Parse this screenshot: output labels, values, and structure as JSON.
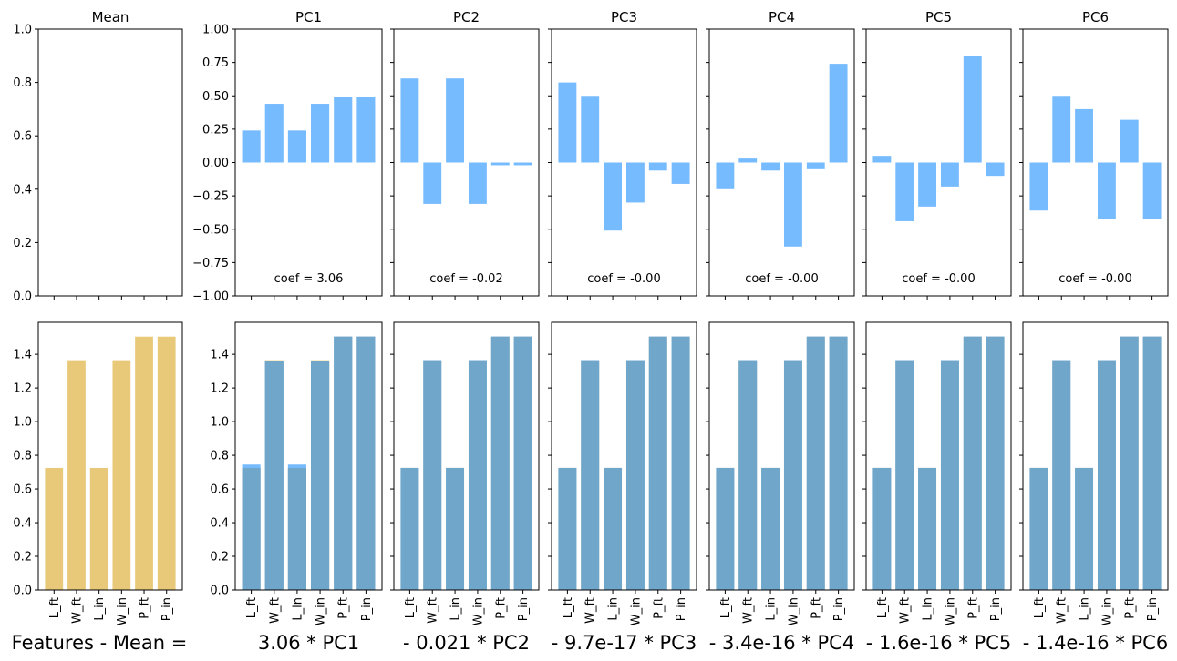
{
  "chart_data": {
    "type": "bar",
    "categories": [
      "L_ft",
      "W_ft",
      "L_in",
      "W_in",
      "P_ft",
      "P_in"
    ],
    "colors": {
      "mean": "#e8c97a",
      "component": "#77bbff",
      "reconstruction": "#77bbff",
      "overlap": "#6fa6ca"
    },
    "top_row": {
      "ylim_mean": [
        0,
        1
      ],
      "yticks_mean": [
        "0.0",
        "0.2",
        "0.4",
        "0.6",
        "0.8",
        "1.0"
      ],
      "ylim_pc": [
        -1,
        1
      ],
      "yticks_pc": [
        "−1.00",
        "−0.75",
        "−0.50",
        "−0.25",
        "0.00",
        "0.25",
        "0.50",
        "0.75",
        "1.00"
      ],
      "panels": [
        {
          "title": "Mean",
          "values": [],
          "annotation": ""
        },
        {
          "title": "PC1",
          "values": [
            0.24,
            0.44,
            0.24,
            0.44,
            0.49,
            0.49
          ],
          "annotation": "coef = 3.06"
        },
        {
          "title": "PC2",
          "values": [
            0.63,
            -0.31,
            0.63,
            -0.31,
            -0.02,
            -0.02
          ],
          "annotation": "coef = -0.02"
        },
        {
          "title": "PC3",
          "values": [
            0.6,
            0.5,
            -0.51,
            -0.3,
            -0.06,
            -0.16
          ],
          "annotation": "coef = -0.00"
        },
        {
          "title": "PC4",
          "values": [
            -0.2,
            0.03,
            -0.06,
            -0.63,
            -0.05,
            0.74
          ],
          "annotation": "coef = -0.00"
        },
        {
          "title": "PC5",
          "values": [
            0.05,
            -0.44,
            -0.33,
            -0.18,
            0.8,
            -0.1
          ],
          "annotation": "coef = -0.00"
        },
        {
          "title": "PC6",
          "values": [
            -0.36,
            0.5,
            0.4,
            -0.42,
            0.32,
            -0.42
          ],
          "annotation": "coef = -0.00"
        }
      ]
    },
    "bottom_row": {
      "ylim": [
        0,
        1.59
      ],
      "yticks": [
        "0.0",
        "0.2",
        "0.4",
        "0.6",
        "0.8",
        "1.0",
        "1.2",
        "1.4"
      ],
      "mean_values": [
        0.725,
        1.365,
        0.725,
        1.365,
        1.505,
        1.505
      ],
      "reconstructions": [
        [
          0.745,
          1.36,
          0.745,
          1.36,
          1.505,
          1.505
        ],
        [
          0.725,
          1.365,
          0.725,
          1.365,
          1.505,
          1.505
        ],
        [
          0.725,
          1.365,
          0.725,
          1.365,
          1.505,
          1.505
        ],
        [
          0.725,
          1.365,
          0.725,
          1.365,
          1.505,
          1.505
        ],
        [
          0.725,
          1.365,
          0.725,
          1.365,
          1.505,
          1.505
        ],
        [
          0.725,
          1.365,
          0.725,
          1.365,
          1.505,
          1.505
        ]
      ]
    },
    "equation": [
      "Features - Mean =",
      "3.06 * PC1",
      "- 0.021 * PC2",
      "- 9.7e-17 * PC3",
      "- 3.4e-16 * PC4",
      "- 1.6e-16 * PC5",
      "- 1.4e-16 * PC6"
    ]
  }
}
